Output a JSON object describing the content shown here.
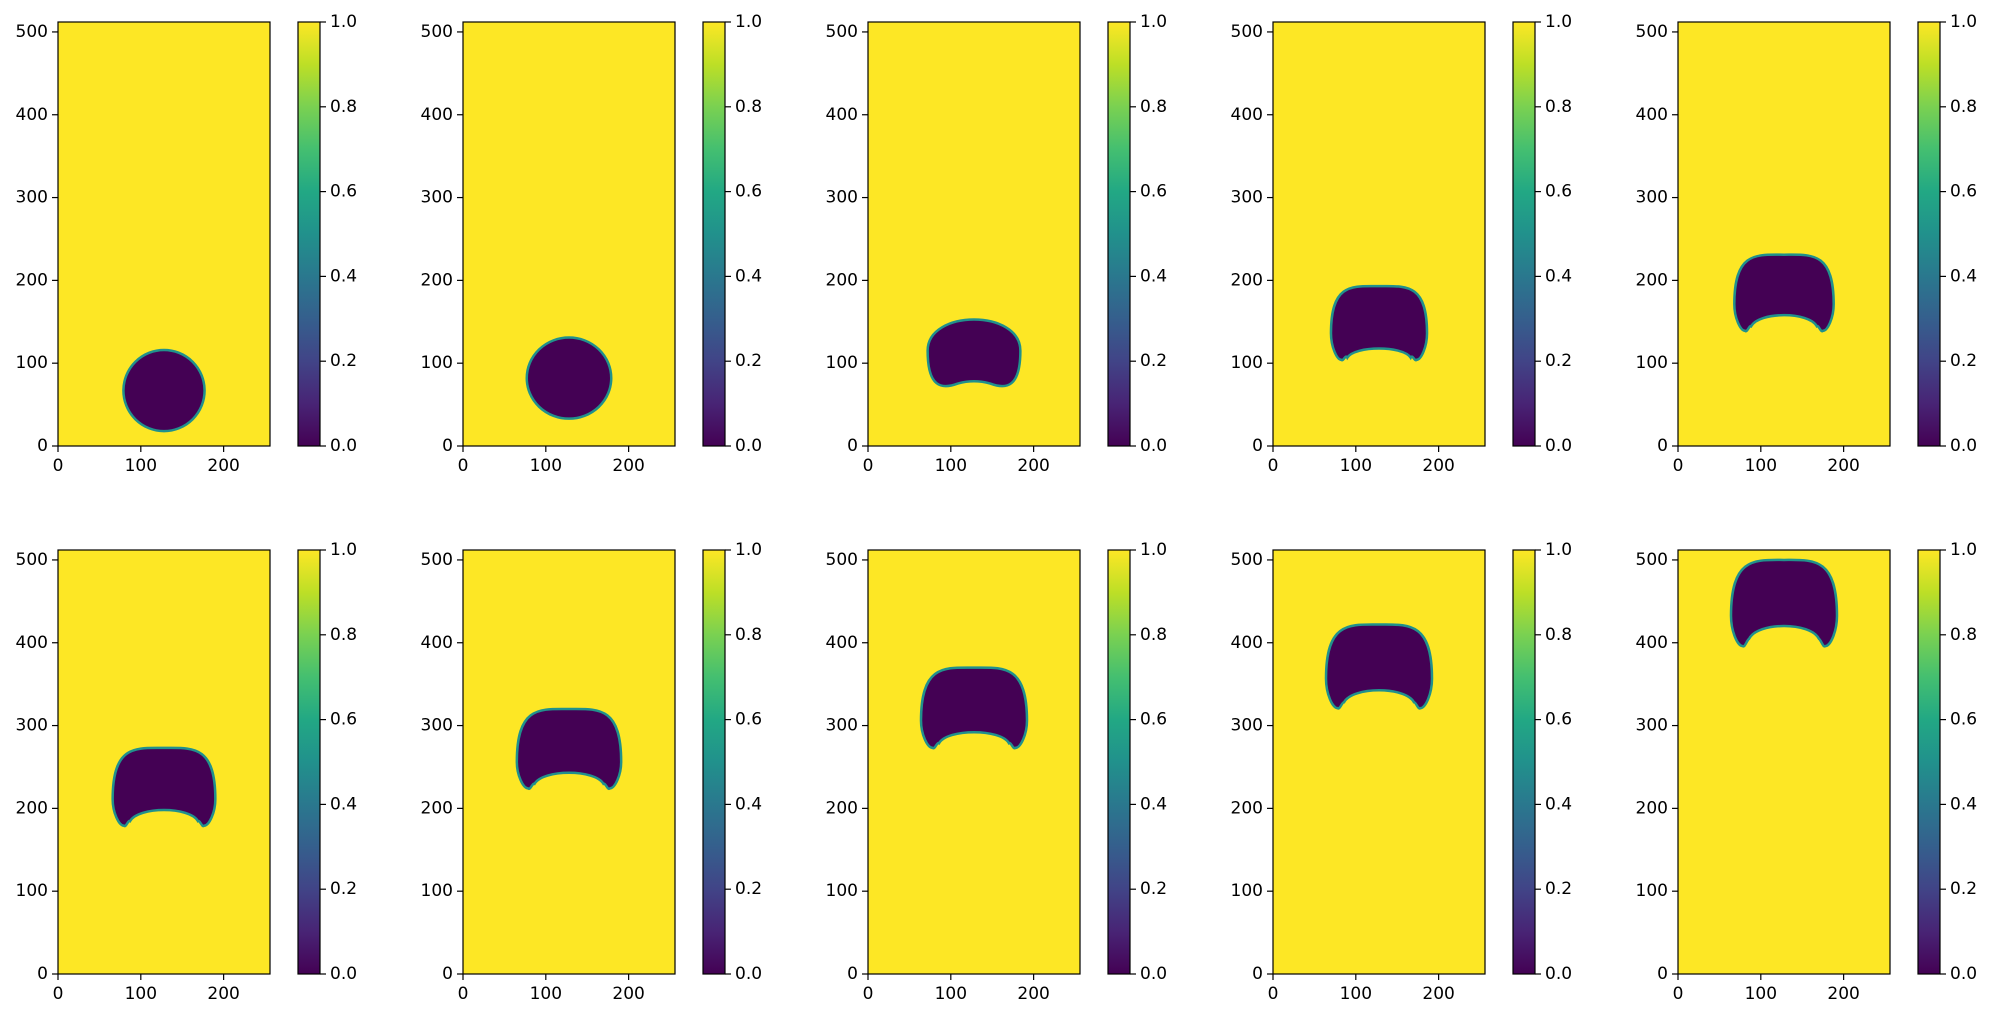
{
  "chart_data": {
    "type": "heatmap",
    "layout": {
      "rows": 2,
      "cols": 5
    },
    "colormap": "viridis",
    "colors": {
      "background": "#ffffff",
      "field_high": "#fde725",
      "field_low": "#440154",
      "interface": "#21918c",
      "axis": "#000000"
    },
    "x_ticks": [
      "0",
      "100",
      "200"
    ],
    "x_tick_values": [
      0,
      100,
      200
    ],
    "y_ticks": [
      "0",
      "100",
      "200",
      "300",
      "400",
      "500"
    ],
    "y_tick_values": [
      0,
      100,
      200,
      300,
      400,
      500
    ],
    "colorbar_ticks": [
      "0.0",
      "0.2",
      "0.4",
      "0.6",
      "0.8",
      "1.0"
    ],
    "colorbar_tick_values": [
      0.0,
      0.2,
      0.4,
      0.6,
      0.8,
      1.0
    ],
    "xlim": [
      0,
      256
    ],
    "ylim": [
      0,
      512
    ],
    "clim": [
      0.0,
      1.0
    ],
    "frames": [
      {
        "shape": "circle",
        "center": [
          128,
          67
        ],
        "half_width": 49,
        "top": 116
      },
      {
        "shape": "circle",
        "center": [
          128,
          82
        ],
        "half_width": 51,
        "top": 131
      },
      {
        "shape": "dimpled",
        "center": [
          128,
          115
        ],
        "half_width": 56,
        "top": 158,
        "bottom": 73,
        "dimple": 79
      },
      {
        "shape": "cap",
        "center": [
          128,
          150
        ],
        "half_width": 58,
        "top": 193,
        "foot": 104,
        "inner": 119
      },
      {
        "shape": "cap",
        "center": [
          128,
          185
        ],
        "half_width": 60,
        "top": 231,
        "foot": 139,
        "inner": 160
      },
      {
        "shape": "cap",
        "center": [
          128,
          225
        ],
        "half_width": 62,
        "top": 273,
        "foot": 179,
        "inner": 200
      },
      {
        "shape": "cap",
        "center": [
          128,
          270
        ],
        "half_width": 63,
        "top": 320,
        "foot": 224,
        "inner": 245
      },
      {
        "shape": "cap",
        "center": [
          128,
          320
        ],
        "half_width": 64,
        "top": 370,
        "foot": 273,
        "inner": 294
      },
      {
        "shape": "cap",
        "center": [
          128,
          372
        ],
        "half_width": 64,
        "top": 422,
        "foot": 321,
        "inner": 345
      },
      {
        "shape": "cap",
        "center": [
          128,
          448
        ],
        "half_width": 64,
        "top": 500,
        "foot": 396,
        "inner": 423
      }
    ]
  }
}
